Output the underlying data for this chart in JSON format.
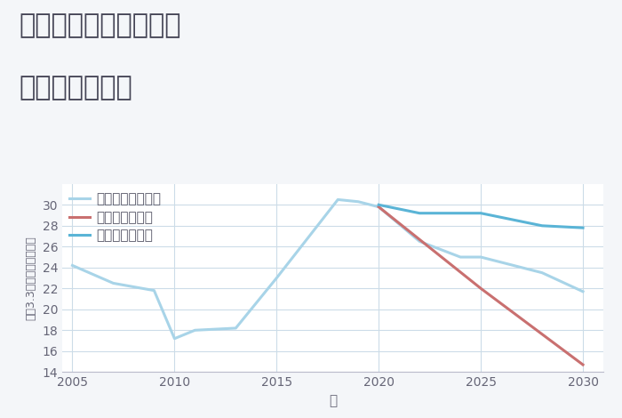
{
  "title_line1": "千葉県印西市西の原の",
  "title_line2": "土地の価格推移",
  "xlabel": "年",
  "ylabel": "坪（3.3㎡）単価（万円）",
  "background_color": "#f4f6f9",
  "plot_background_color": "#ffffff",
  "grid_color": "#ccdce8",
  "ylim": [
    14,
    32
  ],
  "xlim": [
    2004.5,
    2031
  ],
  "yticks": [
    14,
    16,
    18,
    20,
    22,
    24,
    26,
    28,
    30
  ],
  "xticks": [
    2005,
    2010,
    2015,
    2020,
    2025,
    2030
  ],
  "good_scenario": {
    "x": [
      2020,
      2021,
      2022,
      2023,
      2024,
      2025,
      2028,
      2030
    ],
    "y": [
      30.0,
      29.6,
      29.2,
      29.2,
      29.2,
      29.2,
      28.0,
      27.8
    ],
    "color": "#5ab4d6",
    "linewidth": 2.2,
    "label": "グッドシナリオ"
  },
  "bad_scenario": {
    "x": [
      2020,
      2025,
      2030
    ],
    "y": [
      29.8,
      22.0,
      14.7
    ],
    "color": "#c97070",
    "linewidth": 2.2,
    "label": "バッドシナリオ"
  },
  "normal_scenario": {
    "x": [
      2005,
      2007,
      2009,
      2010,
      2011,
      2013,
      2015,
      2018,
      2019,
      2020,
      2022,
      2024,
      2025,
      2028,
      2030
    ],
    "y": [
      24.2,
      22.5,
      21.8,
      17.2,
      18.0,
      18.2,
      23.0,
      30.5,
      30.3,
      29.8,
      26.5,
      25.0,
      25.0,
      23.5,
      21.7
    ],
    "color": "#a8d4e8",
    "linewidth": 2.2,
    "label": "ノーマルシナリオ"
  },
  "title_fontsize": 22,
  "axis_label_fontsize": 11,
  "tick_fontsize": 10,
  "legend_fontsize": 11
}
